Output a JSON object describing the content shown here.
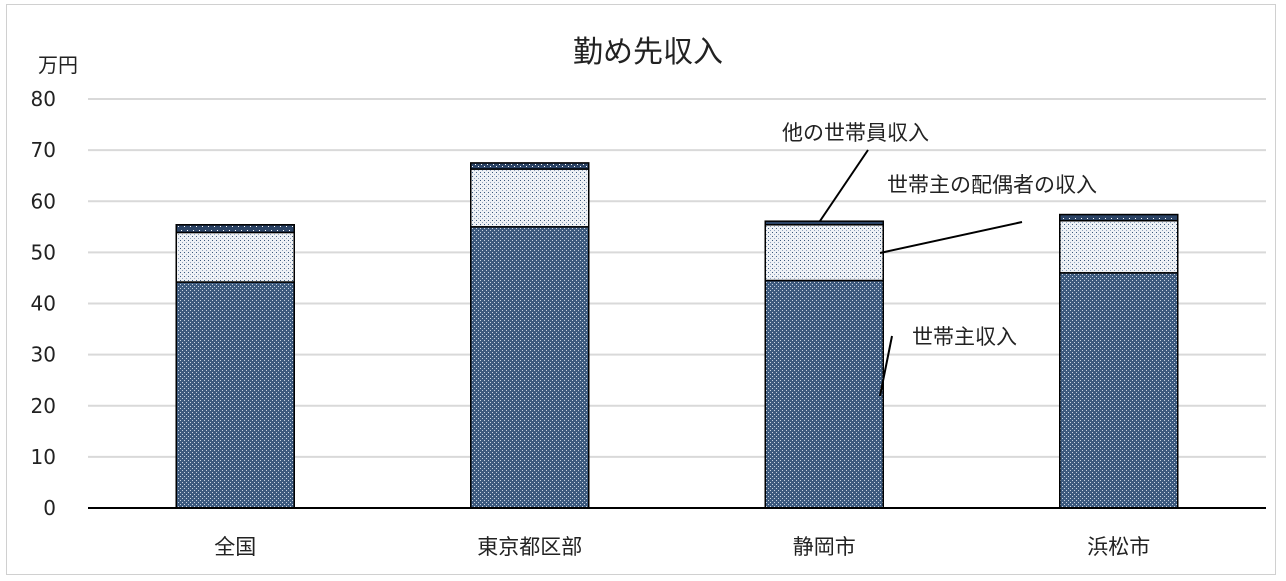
{
  "chart_data": {
    "type": "bar",
    "stacked": true,
    "title": "勤め先収入",
    "ylabel": "万円",
    "xlabel": "",
    "ylim": [
      0,
      80
    ],
    "ytick_step": 10,
    "yticks": [
      "0",
      "10",
      "20",
      "30",
      "40",
      "50",
      "60",
      "70",
      "80"
    ],
    "grid": true,
    "legend": "none",
    "categories": [
      "全国",
      "東京都区部",
      "静岡市",
      "浜松市"
    ],
    "series": [
      {
        "name": "世帯主収入",
        "values": [
          44.2,
          55.0,
          44.5,
          46.0
        ]
      },
      {
        "name": "世帯主の配偶者の収入",
        "values": [
          9.7,
          11.3,
          10.9,
          10.2
        ]
      },
      {
        "name": "他の世帯員収入",
        "values": [
          1.5,
          1.2,
          0.7,
          1.2
        ]
      }
    ],
    "annotations": [
      "他の世帯員収入",
      "世帯主の配偶者の収入",
      "世帯主収入"
    ],
    "colors": {
      "head": "#3d5a7e",
      "spouse": "#f2f4f7",
      "other": "#2c4466",
      "grid": "#d9d9d9",
      "axis": "#000000"
    }
  }
}
